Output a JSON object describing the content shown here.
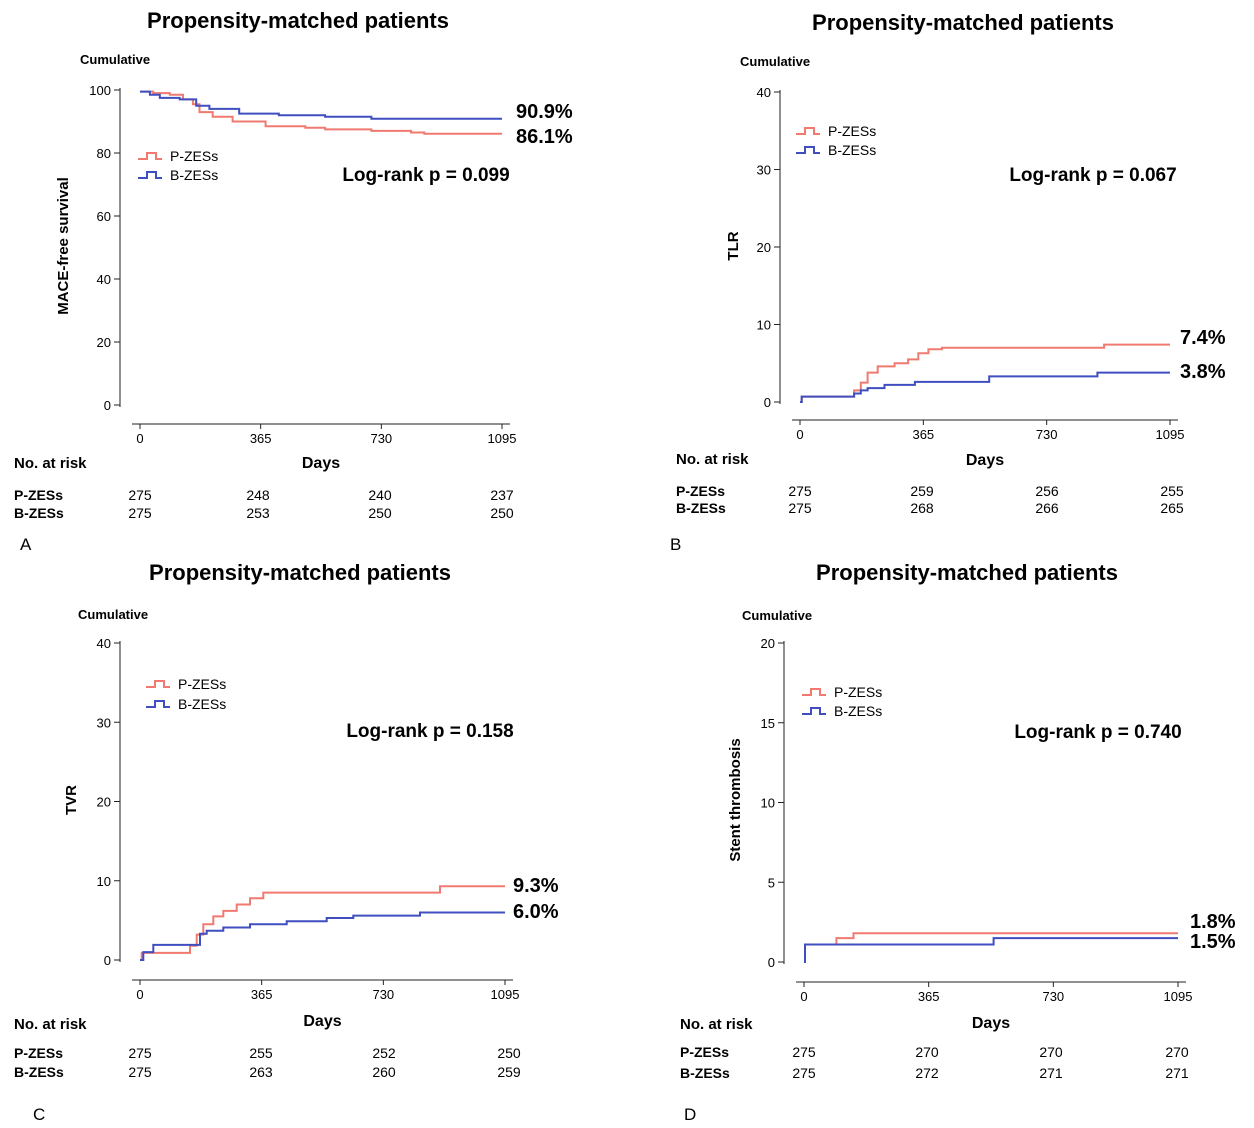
{
  "chart_data": [
    {
      "panel": "A",
      "type": "line",
      "title": "Propensity-matched patients",
      "cumulative_label": "Cumulative",
      "ylabel": "MACE-free survival",
      "xlabel": "Days",
      "ylim": [
        0,
        100
      ],
      "yticks": [
        0,
        20,
        40,
        60,
        80,
        100
      ],
      "xlim": [
        0,
        1095
      ],
      "xticks": [
        0,
        365,
        730,
        1095
      ],
      "legend": "left",
      "logrank": "Log-rank p = 0.099",
      "series": [
        {
          "name": "P-ZESs",
          "color": "#f07a70",
          "end_label": "86.1%",
          "points": [
            [
              0,
              99.5
            ],
            [
              40,
              99
            ],
            [
              90,
              98.5
            ],
            [
              130,
              97
            ],
            [
              160,
              95.5
            ],
            [
              180,
              93
            ],
            [
              220,
              91.5
            ],
            [
              280,
              90
            ],
            [
              380,
              88.5
            ],
            [
              500,
              88
            ],
            [
              560,
              87.5
            ],
            [
              700,
              87
            ],
            [
              820,
              86.5
            ],
            [
              860,
              86.1
            ],
            [
              1095,
              86.1
            ]
          ]
        },
        {
          "name": "B-ZESs",
          "color": "#3f4fc0",
          "end_label": "90.9%",
          "points": [
            [
              0,
              99.5
            ],
            [
              30,
              98.5
            ],
            [
              60,
              97.5
            ],
            [
              120,
              97
            ],
            [
              170,
              95
            ],
            [
              210,
              94
            ],
            [
              300,
              92.5
            ],
            [
              420,
              92
            ],
            [
              560,
              91.5
            ],
            [
              700,
              90.9
            ],
            [
              1095,
              90.9
            ]
          ]
        }
      ],
      "risk_table": {
        "header": "No. at risk",
        "rows": [
          {
            "label": "P-ZESs",
            "values": [
              "275",
              "248",
              "240",
              "237"
            ]
          },
          {
            "label": "B-ZESs",
            "values": [
              "275",
              "253",
              "250",
              "250"
            ]
          }
        ]
      }
    },
    {
      "panel": "B",
      "type": "line",
      "title": "Propensity-matched patients",
      "cumulative_label": "Cumulative",
      "ylabel": "TLR",
      "xlabel": "Days",
      "ylim": [
        0,
        40
      ],
      "yticks": [
        0,
        10,
        20,
        30,
        40
      ],
      "xlim": [
        0,
        1095
      ],
      "xticks": [
        0,
        365,
        730,
        1095
      ],
      "legend": "top-left",
      "logrank": "Log-rank p = 0.067",
      "series": [
        {
          "name": "P-ZESs",
          "color": "#f07a70",
          "end_label": "7.4%",
          "points": [
            [
              0,
              0
            ],
            [
              5,
              0.7
            ],
            [
              150,
              0.7
            ],
            [
              160,
              1.5
            ],
            [
              180,
              2.5
            ],
            [
              200,
              3.8
            ],
            [
              230,
              4.6
            ],
            [
              280,
              5.0
            ],
            [
              320,
              5.5
            ],
            [
              350,
              6.3
            ],
            [
              380,
              6.8
            ],
            [
              420,
              7.0
            ],
            [
              880,
              7.0
            ],
            [
              900,
              7.4
            ],
            [
              1095,
              7.4
            ]
          ]
        },
        {
          "name": "B-ZESs",
          "color": "#3f4fc0",
          "end_label": "3.8%",
          "points": [
            [
              0,
              0
            ],
            [
              5,
              0.7
            ],
            [
              145,
              0.7
            ],
            [
              160,
              1.1
            ],
            [
              180,
              1.5
            ],
            [
              200,
              1.8
            ],
            [
              250,
              2.2
            ],
            [
              340,
              2.6
            ],
            [
              560,
              3.3
            ],
            [
              880,
              3.8
            ],
            [
              1095,
              3.8
            ]
          ]
        }
      ],
      "risk_table": {
        "header": "No. at risk",
        "rows": [
          {
            "label": "P-ZESs",
            "values": [
              "275",
              "259",
              "256",
              "255"
            ]
          },
          {
            "label": "B-ZESs",
            "values": [
              "275",
              "268",
              "266",
              "265"
            ]
          }
        ]
      }
    },
    {
      "panel": "C",
      "type": "line",
      "title": "Propensity-matched patients",
      "cumulative_label": "Cumulative",
      "ylabel": "TVR",
      "xlabel": "Days",
      "ylim": [
        0,
        40
      ],
      "yticks": [
        0,
        10,
        20,
        30,
        40
      ],
      "xlim": [
        0,
        1095
      ],
      "xticks": [
        0,
        365,
        730,
        1095
      ],
      "legend": "top-left",
      "logrank": "Log-rank p = 0.158",
      "series": [
        {
          "name": "P-ZESs",
          "color": "#f07a70",
          "end_label": "9.3%",
          "points": [
            [
              0,
              0
            ],
            [
              5,
              0.9
            ],
            [
              130,
              0.9
            ],
            [
              150,
              1.8
            ],
            [
              170,
              3.2
            ],
            [
              190,
              4.5
            ],
            [
              220,
              5.5
            ],
            [
              250,
              6.2
            ],
            [
              290,
              7.0
            ],
            [
              330,
              7.8
            ],
            [
              370,
              8.5
            ],
            [
              880,
              8.5
            ],
            [
              900,
              9.3
            ],
            [
              1095,
              9.3
            ]
          ]
        },
        {
          "name": "B-ZESs",
          "color": "#3f4fc0",
          "end_label": "6.0%",
          "points": [
            [
              0,
              0
            ],
            [
              10,
              1.0
            ],
            [
              40,
              1.9
            ],
            [
              150,
              1.9
            ],
            [
              180,
              3.3
            ],
            [
              200,
              3.7
            ],
            [
              250,
              4.1
            ],
            [
              330,
              4.5
            ],
            [
              440,
              4.9
            ],
            [
              560,
              5.3
            ],
            [
              640,
              5.6
            ],
            [
              840,
              6.0
            ],
            [
              1095,
              6.0
            ]
          ]
        }
      ],
      "risk_table": {
        "header": "No. at risk",
        "rows": [
          {
            "label": "P-ZESs",
            "values": [
              "275",
              "255",
              "252",
              "250"
            ]
          },
          {
            "label": "B-ZESs",
            "values": [
              "275",
              "263",
              "260",
              "259"
            ]
          }
        ]
      }
    },
    {
      "panel": "D",
      "type": "line",
      "title": "Propensity-matched patients",
      "cumulative_label": "Cumulative",
      "ylabel": "Stent thrombosis",
      "xlabel": "Days",
      "ylim": [
        0,
        20
      ],
      "yticks": [
        0,
        5,
        10,
        15,
        20
      ],
      "xlim": [
        0,
        1095
      ],
      "xticks": [
        0,
        365,
        730,
        1095
      ],
      "legend": "top-left",
      "logrank": "Log-rank p = 0.740",
      "series": [
        {
          "name": "P-ZESs",
          "color": "#f07a70",
          "end_label": "1.8%",
          "points": [
            [
              0,
              0
            ],
            [
              3,
              1.1
            ],
            [
              90,
              1.1
            ],
            [
              95,
              1.5
            ],
            [
              140,
              1.5
            ],
            [
              145,
              1.8
            ],
            [
              1095,
              1.8
            ]
          ]
        },
        {
          "name": "B-ZESs",
          "color": "#3f4fc0",
          "end_label": "1.5%",
          "points": [
            [
              0,
              0
            ],
            [
              3,
              1.1
            ],
            [
              550,
              1.1
            ],
            [
              555,
              1.5
            ],
            [
              1095,
              1.5
            ]
          ]
        }
      ],
      "risk_table": {
        "header": "No. at risk",
        "rows": [
          {
            "label": "P-ZESs",
            "values": [
              "275",
              "270",
              "270",
              "270"
            ]
          },
          {
            "label": "B-ZESs",
            "values": [
              "275",
              "272",
              "271",
              "271"
            ]
          }
        ]
      }
    }
  ]
}
